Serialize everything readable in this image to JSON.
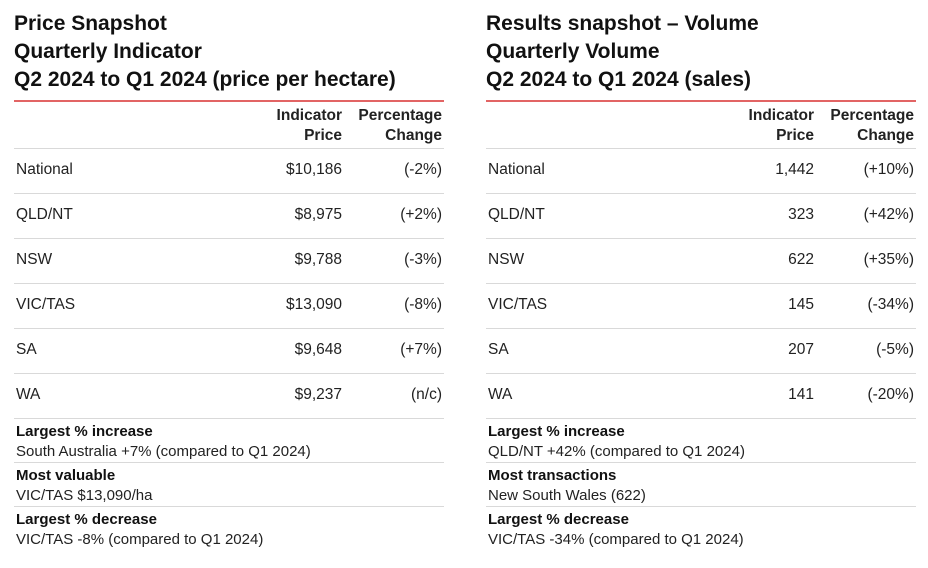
{
  "price": {
    "title_lines": [
      "Price Snapshot",
      "Quarterly Indicator",
      "Q2 2024 to Q1 2024 (price per hectare)"
    ],
    "headers": {
      "value": [
        "Indicator",
        "Price"
      ],
      "change": [
        "Percentage",
        "Change"
      ]
    },
    "rows": [
      {
        "region": "National",
        "value": "$10,186",
        "change": "(-2%)"
      },
      {
        "region": "QLD/NT",
        "value": "$8,975",
        "change": "(+2%)"
      },
      {
        "region": "NSW",
        "value": "$9,788",
        "change": "(-3%)"
      },
      {
        "region": "VIC/TAS",
        "value": "$13,090",
        "change": "(-8%)"
      },
      {
        "region": "SA",
        "value": "$9,648",
        "change": "(+7%)"
      },
      {
        "region": "WA",
        "value": "$9,237",
        "change": "(n/c)"
      }
    ],
    "summary": [
      {
        "label": "Largest % increase",
        "text": "South Australia +7% (compared to Q1 2024)"
      },
      {
        "label": "Most valuable",
        "text": "VIC/TAS $13,090/ha"
      },
      {
        "label": "Largest % decrease",
        "text": "VIC/TAS -8% (compared to Q1 2024)"
      }
    ]
  },
  "volume": {
    "title_lines": [
      "Results snapshot – Volume",
      "Quarterly Volume",
      "Q2 2024 to Q1 2024 (sales)"
    ],
    "headers": {
      "value": [
        "Indicator",
        "Price"
      ],
      "change": [
        "Percentage",
        "Change"
      ]
    },
    "rows": [
      {
        "region": "National",
        "value": "1,442",
        "change": "(+10%)"
      },
      {
        "region": "QLD/NT",
        "value": "323",
        "change": "(+42%)"
      },
      {
        "region": "NSW",
        "value": "622",
        "change": "(+35%)"
      },
      {
        "region": "VIC/TAS",
        "value": "145",
        "change": "(-34%)"
      },
      {
        "region": "SA",
        "value": "207",
        "change": "(-5%)"
      },
      {
        "region": "WA",
        "value": "141",
        "change": "(-20%)"
      }
    ],
    "summary": [
      {
        "label": "Largest % increase",
        "text": "QLD/NT +42% (compared to Q1 2024)"
      },
      {
        "label": "Most transactions",
        "text": "New South Wales (622)"
      },
      {
        "label": "Largest % decrease",
        "text": "VIC/TAS -34% (compared to Q1 2024)"
      }
    ]
  },
  "colors": {
    "accent_rule": "#e26464",
    "row_divider": "#d9d9d9"
  }
}
